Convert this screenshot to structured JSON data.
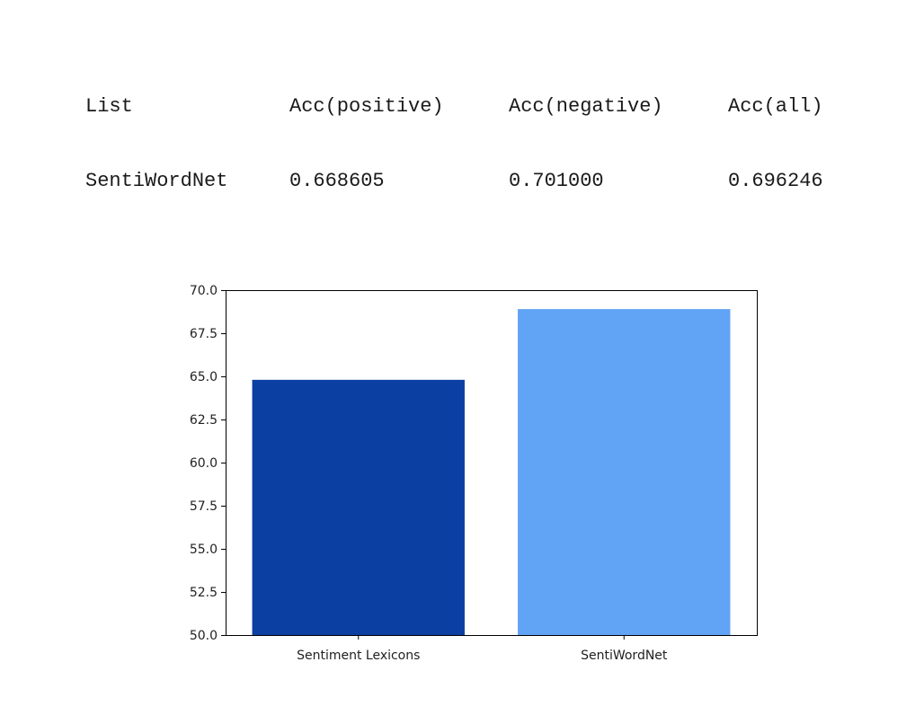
{
  "table": {
    "headers": [
      "List",
      "Acc(positive)",
      "Acc(negative)",
      "Acc(all)"
    ],
    "rows": [
      [
        "SentiWordNet",
        "0.668605",
        "0.701000",
        "0.696246"
      ]
    ]
  },
  "chart_data": {
    "type": "bar",
    "categories": [
      "Sentiment Lexicons",
      "SentiWordNet"
    ],
    "values": [
      64.8,
      68.9
    ],
    "colors": [
      "#0c3fa2",
      "#61a3f4"
    ],
    "title": "",
    "xlabel": "",
    "ylabel": "",
    "ylim": [
      50.0,
      70.0
    ],
    "yticks": [
      "50.0",
      "52.5",
      "55.0",
      "57.5",
      "60.0",
      "62.5",
      "65.0",
      "67.5",
      "70.0"
    ],
    "grid": false
  }
}
